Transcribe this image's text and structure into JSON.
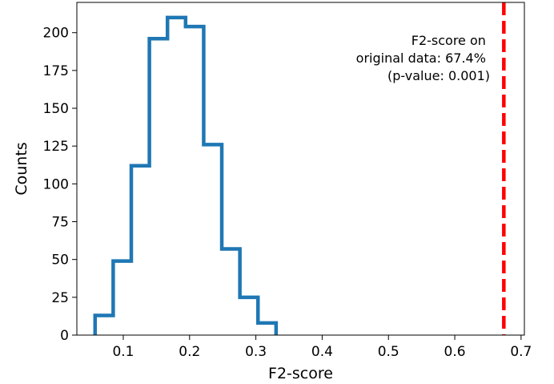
{
  "chart_data": {
    "type": "histogram",
    "xlabel": "F2-score",
    "ylabel": "Counts",
    "xlim": [
      0.03,
      0.705
    ],
    "ylim": [
      0,
      220
    ],
    "xticks": [
      0.1,
      0.2,
      0.3,
      0.4,
      0.5,
      0.6,
      0.7
    ],
    "xtick_labels": [
      "0.1",
      "0.2",
      "0.3",
      "0.4",
      "0.5",
      "0.6",
      "0.7"
    ],
    "yticks": [
      0,
      25,
      50,
      75,
      100,
      125,
      150,
      175,
      200
    ],
    "ytick_labels": [
      "0",
      "25",
      "50",
      "75",
      "100",
      "125",
      "150",
      "175",
      "200"
    ],
    "bin_edges": [
      0.0575,
      0.0848,
      0.1121,
      0.1394,
      0.1667,
      0.194,
      0.2213,
      0.2486,
      0.2759,
      0.3032,
      0.3305
    ],
    "counts": [
      13,
      49,
      112,
      196,
      210,
      204,
      126,
      57,
      25,
      8
    ],
    "histtype": "step",
    "line_color": "#1f77b4",
    "reference_line": {
      "x": 0.674,
      "style": "dashed",
      "color": "#ff0000"
    },
    "annotation": {
      "lines": [
        "F2-score on",
        "original data: 67.4%",
        "(p-value: 0.001)"
      ]
    },
    "grid": false
  }
}
